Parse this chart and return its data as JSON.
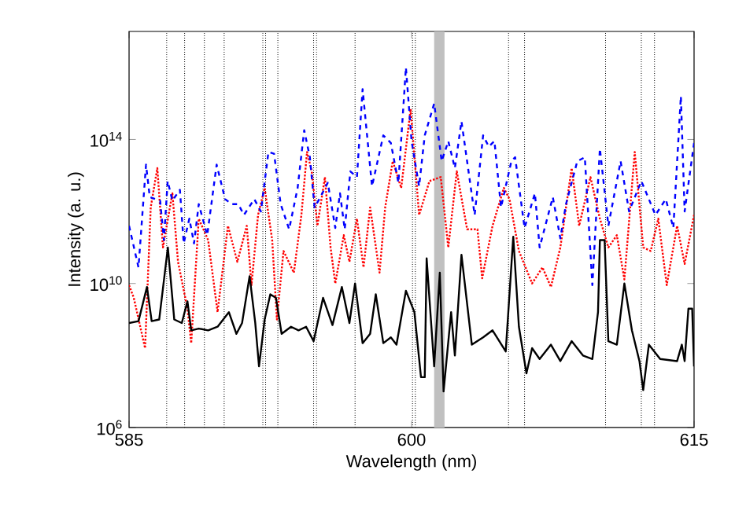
{
  "chart_data": {
    "type": "line",
    "xlabel": "Wavelength (nm)",
    "ylabel": "Intensity (a. u.)",
    "log": "y",
    "grid": false,
    "marker": "none",
    "xlim": [
      585,
      615
    ],
    "xticks": [
      585,
      600,
      615
    ],
    "ylim": [
      1000000.0,
      1e+17
    ],
    "yticks": [
      {
        "value": 1000000.0,
        "label": "10$^{6}$"
      },
      {
        "value": 10000000000.0,
        "label": "10$^{10}$"
      },
      {
        "value": 100000000000000.0,
        "label": "10$^{14}$"
      }
    ],
    "series": [
      {
        "color": "#ff0000",
        "line_style": "dotted",
        "x": [
          585.0,
          585.25,
          585.85,
          586.15,
          586.5,
          586.8,
          587.3,
          587.6,
          588.1,
          588.3,
          588.7,
          589.2,
          589.7,
          590.25,
          590.75,
          591.25,
          591.5,
          591.85,
          592.2,
          592.6,
          592.85,
          593.2,
          593.75,
          594.15,
          594.45,
          594.7,
          595.0,
          595.4,
          595.7,
          595.95,
          596.4,
          596.7,
          597.1,
          597.45,
          597.8,
          598.3,
          598.6,
          599.0,
          599.45,
          599.95,
          600.4,
          600.95,
          601.55,
          601.95,
          602.4,
          602.95,
          603.5,
          603.75,
          604.3,
          604.9,
          605.2,
          605.7,
          606.4,
          606.95,
          607.4,
          607.9,
          608.5,
          608.9,
          609.5,
          610.0,
          610.45,
          610.9,
          611.3,
          611.85,
          612.3,
          612.7,
          613.1,
          613.55,
          614.1,
          614.5,
          615.0
        ],
        "values": [
          9000000000.0,
          4000000000.0,
          160000000.0,
          1300000000000.0,
          16000000000000.0,
          100000000000.0,
          3200000000000.0,
          40000000000.0,
          2000000000.0,
          220000000.0,
          630000000000.0,
          160000000000.0,
          1600000000.0,
          400000000000.0,
          40000000000.0,
          400000000000.0,
          9000000000.0,
          800000000000.0,
          4500000000000.0,
          160000000000.0,
          1000000000.0,
          80000000000.0,
          20000000000.0,
          800000000000.0,
          45000000000000.0,
          13000000000000.0,
          400000000000.0,
          9000000000000.0,
          100000000000.0,
          10000000000.0,
          220000000000.0,
          40000000000.0,
          630000000000.0,
          28000000000.0,
          1300000000000.0,
          20000000000.0,
          1300000000000.0,
          25000000000000.0,
          4500000000000.0,
          700000000000000.0,
          800000000000.0,
          7000000000000.0,
          9000000000000.0,
          100000000000.0,
          13000000000000.0,
          320000000000.0,
          320000000000.0,
          14000000000.0,
          400000000000.0,
          4500000000000.0,
          2200000000000.0,
          80000000000.0,
          10000000000.0,
          28000000000.0,
          8000000000.0,
          100000000000.0,
          16000000000000.0,
          400000000000.0,
          9000000000000.0,
          630000000000.0,
          100000000000.0,
          220000000000.0,
          13000000000.0,
          45000000000000.0,
          100000000000.0,
          80000000000.0,
          630000000000.0,
          9000000000.0,
          400000000000.0,
          35000000000.0,
          800000000000.0
        ]
      },
      {
        "color": "#0000ff",
        "line_style": "dashed",
        "x": [
          585.0,
          585.5,
          585.9,
          586.1,
          586.65,
          586.85,
          587.05,
          587.3,
          587.7,
          587.9,
          588.2,
          588.45,
          588.7,
          589.15,
          589.65,
          590.1,
          590.45,
          590.8,
          591.1,
          591.65,
          592.0,
          592.4,
          592.7,
          593.05,
          593.5,
          593.95,
          594.3,
          594.6,
          594.85,
          595.1,
          595.55,
          595.95,
          596.2,
          596.45,
          596.75,
          597.1,
          597.4,
          597.9,
          598.5,
          598.9,
          599.3,
          599.7,
          600.0,
          600.4,
          600.7,
          601.2,
          601.6,
          601.95,
          602.3,
          602.65,
          603.35,
          603.8,
          604.1,
          604.4,
          604.75,
          605.3,
          605.5,
          606.0,
          606.55,
          606.8,
          607.5,
          607.9,
          608.2,
          608.8,
          609.2,
          609.6,
          610.0,
          610.45,
          611.1,
          611.55,
          612.2,
          612.95,
          613.5,
          613.9,
          614.3,
          614.5,
          615.0
        ],
        "values": [
          400000000000.0,
          28000000000.0,
          20000000000000.0,
          2500000000000.0,
          2000000000000.0,
          160000000000.0,
          7000000000000.0,
          2000000000000.0,
          4000000000000.0,
          130000000000.0,
          630000000000.0,
          130000000000.0,
          1600000000000.0,
          220000000000.0,
          20000000000000.0,
          2200000000000.0,
          1600000000000.0,
          1600000000000.0,
          800000000000.0,
          2200000000000.0,
          1000000000000.0,
          45000000000000.0,
          40000000000000.0,
          1600000000000.0,
          320000000000.0,
          4500000000000.0,
          180000000000000.0,
          32000000000000.0,
          1300000000000.0,
          2200000000000.0,
          6300000000000.0,
          350000000000.0,
          3200000000000.0,
          320000000000.0,
          13000000000000.0,
          9000000000000.0,
          2500000000000000.0,
          5000000000000.0,
          130000000000000.0,
          80000000000000.0,
          6300000000000.0,
          1e+16,
          90000000000000.0,
          5000000000000.0,
          130000000000000.0,
          1000000000000000.0,
          25000000000000.0,
          90000000000000.0,
          16000000000000.0,
          320000000000000.0,
          800000000000.0,
          130000000000000.0,
          63000000000000.0,
          90000000000000.0,
          1300000000000.0,
          25000000000000.0,
          32000000000000.0,
          350000000000.0,
          3200000000000.0,
          100000000000.0,
          2500000000000.0,
          180000000000.0,
          1600000000000.0,
          25000000000000.0,
          32000000000000.0,
          9000000000.0,
          56000000000000.0,
          400000000000.0,
          25000000000000.0,
          1000000000000.0,
          7000000000000.0,
          800000000000.0,
          2200000000000.0,
          350000000000.0,
          1600000000000000.0,
          1000000000000.0,
          80000000000000.0
        ]
      },
      {
        "color": "#000000",
        "line_style": "solid",
        "x": [
          585.0,
          585.5,
          585.95,
          586.2,
          586.6,
          587.06,
          587.4,
          587.8,
          588.1,
          588.3,
          588.7,
          589.2,
          589.7,
          590.3,
          590.7,
          591.0,
          591.4,
          591.7,
          591.9,
          592.2,
          592.5,
          592.8,
          593.1,
          593.6,
          594.0,
          594.4,
          594.8,
          595.3,
          595.8,
          596.3,
          596.7,
          597.0,
          597.4,
          597.8,
          598.1,
          598.5,
          598.9,
          599.2,
          599.7,
          600.15,
          600.5,
          600.7,
          600.8,
          601.2,
          601.5,
          601.7,
          602.1,
          602.3,
          602.65,
          603.2,
          603.8,
          604.3,
          605.0,
          605.4,
          605.7,
          606.1,
          606.4,
          606.8,
          607.4,
          607.9,
          608.5,
          609.1,
          609.6,
          609.9,
          610.0,
          610.25,
          610.45,
          610.9,
          611.3,
          611.7,
          612.1,
          612.3,
          612.6,
          613.2,
          614.1,
          614.35,
          614.5,
          614.7,
          614.9,
          615.0
        ],
        "values": [
          800000000.0,
          900000000.0,
          8000000000.0,
          900000000.0,
          1000000000.0,
          100000000000.0,
          1000000000.0,
          800000000.0,
          3200000000.0,
          500000000.0,
          560000000.0,
          500000000.0,
          630000000.0,
          1600000000.0,
          400000000.0,
          800000000.0,
          16000000000.0,
          800000000.0,
          50000000.0,
          1000000000.0,
          5000000000.0,
          4000000000.0,
          400000000.0,
          630000000.0,
          500000000.0,
          630000000.0,
          250000000.0,
          4000000000.0,
          700000000.0,
          8000000000.0,
          800000000.0,
          10000000000.0,
          220000000.0,
          400000000.0,
          5000000000.0,
          220000000.0,
          320000000.0,
          200000000.0,
          6300000000.0,
          1600000000.0,
          25000000.0,
          25000000.0,
          50000000000.0,
          50000000.0,
          20000000000.0,
          10000000.0,
          1600000000.0,
          100000000.0,
          63000000000.0,
          200000000.0,
          320000000.0,
          500000000.0,
          130000000.0,
          200000000000.0,
          630000000.0,
          32000000.0,
          160000000.0,
          80000000.0,
          200000000.0,
          70000000.0,
          250000000.0,
          100000000.0,
          80000000.0,
          1600000000.0,
          160000000000.0,
          160000000000.0,
          250000000.0,
          200000000.0,
          10000000000.0,
          500000000.0,
          70000000.0,
          11000000.0,
          200000000.0,
          80000000.0,
          70000000.0,
          200000000.0,
          70000000.0,
          2000000000.0,
          2000000000.0,
          50000000.0
        ]
      }
    ],
    "ref_lines": [
      {
        "axis": "x",
        "value": 587.0,
        "color": "#000000",
        "line_style": "dotted"
      },
      {
        "axis": "x",
        "value": 587.95,
        "color": "#000000",
        "line_style": "dotted"
      },
      {
        "axis": "x",
        "value": 589.0,
        "color": "#000000",
        "line_style": "dotted"
      },
      {
        "axis": "x",
        "value": 590.05,
        "color": "#000000",
        "line_style": "dotted"
      },
      {
        "axis": "x",
        "value": 592.1,
        "color": "#000000",
        "line_style": "dotted"
      },
      {
        "axis": "x",
        "value": 592.25,
        "color": "#000000",
        "line_style": "dotted"
      },
      {
        "axis": "x",
        "value": 592.9,
        "color": "#000000",
        "line_style": "dotted"
      },
      {
        "axis": "x",
        "value": 594.8,
        "color": "#000000",
        "line_style": "dotted"
      },
      {
        "axis": "x",
        "value": 594.95,
        "color": "#000000",
        "line_style": "dotted"
      },
      {
        "axis": "x",
        "value": 597.0,
        "color": "#000000",
        "line_style": "dotted"
      },
      {
        "axis": "x",
        "value": 600.05,
        "color": "#000000",
        "line_style": "dotted"
      },
      {
        "axis": "x",
        "value": 600.2,
        "color": "#000000",
        "line_style": "dotted"
      },
      {
        "axis": "x",
        "value": 605.15,
        "color": "#000000",
        "line_style": "dotted"
      },
      {
        "axis": "x",
        "value": 606.0,
        "color": "#000000",
        "line_style": "dotted"
      },
      {
        "axis": "x",
        "value": 610.3,
        "color": "#000000",
        "line_style": "dotted"
      },
      {
        "axis": "x",
        "value": 612.2,
        "color": "#000000",
        "line_style": "dotted"
      },
      {
        "axis": "x",
        "value": 612.9,
        "color": "#000000",
        "line_style": "dotted"
      }
    ],
    "bands": [
      {
        "axis": "x",
        "from": 601.2,
        "to": 601.75,
        "color": "#c0c0c0"
      }
    ]
  }
}
